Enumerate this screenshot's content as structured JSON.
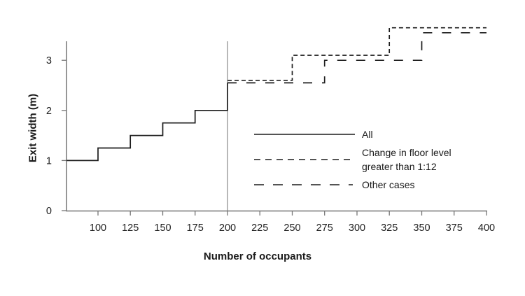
{
  "chart_data": {
    "type": "line",
    "subtype": "step",
    "title": "",
    "xlabel": "Number of occupants",
    "ylabel": "Exit width (m)",
    "xlim": [
      75,
      400
    ],
    "ylim": [
      0,
      3.38
    ],
    "x_ticks": [
      100,
      125,
      150,
      175,
      200,
      225,
      250,
      275,
      300,
      325,
      350,
      375,
      400
    ],
    "y_ticks": [
      0,
      1,
      2,
      3
    ],
    "grid": false,
    "legend_position": "inside-right",
    "reference_line": {
      "axis": "x",
      "value": 200
    },
    "series": [
      {
        "id": "all",
        "name": "All",
        "legend_label": "All",
        "line_style": "solid",
        "points": [
          [
            75.7,
            1.0
          ],
          [
            100,
            1.0
          ],
          [
            100,
            1.25
          ],
          [
            125,
            1.25
          ],
          [
            125,
            1.5
          ],
          [
            150,
            1.5
          ],
          [
            150,
            1.75
          ],
          [
            175,
            1.75
          ],
          [
            175,
            2.0
          ],
          [
            200,
            2.0
          ],
          [
            200,
            2.55
          ]
        ]
      },
      {
        "id": "floor-change",
        "name": "Change in floor level greater than 1:12",
        "legend_label": "Change in floor level\ngreater than 1:12",
        "line_style": "short-dash",
        "points": [
          [
            200,
            2.6
          ],
          [
            250,
            2.6
          ],
          [
            250,
            3.1
          ],
          [
            325,
            3.1
          ],
          [
            325,
            3.65
          ],
          [
            400,
            3.65
          ]
        ]
      },
      {
        "id": "other-cases",
        "name": "Other cases",
        "legend_label": "Other cases",
        "line_style": "long-dash",
        "points": [
          [
            200,
            2.55
          ],
          [
            275,
            2.55
          ],
          [
            275,
            3.0
          ],
          [
            350,
            3.0
          ],
          [
            350,
            3.55
          ],
          [
            400,
            3.55
          ]
        ]
      }
    ],
    "colors": {
      "line": "#1c1c1c",
      "axis": "#757575",
      "reference_line": "#7d7d7d",
      "text": "#1f1f1f",
      "background": "#ffffff"
    }
  }
}
